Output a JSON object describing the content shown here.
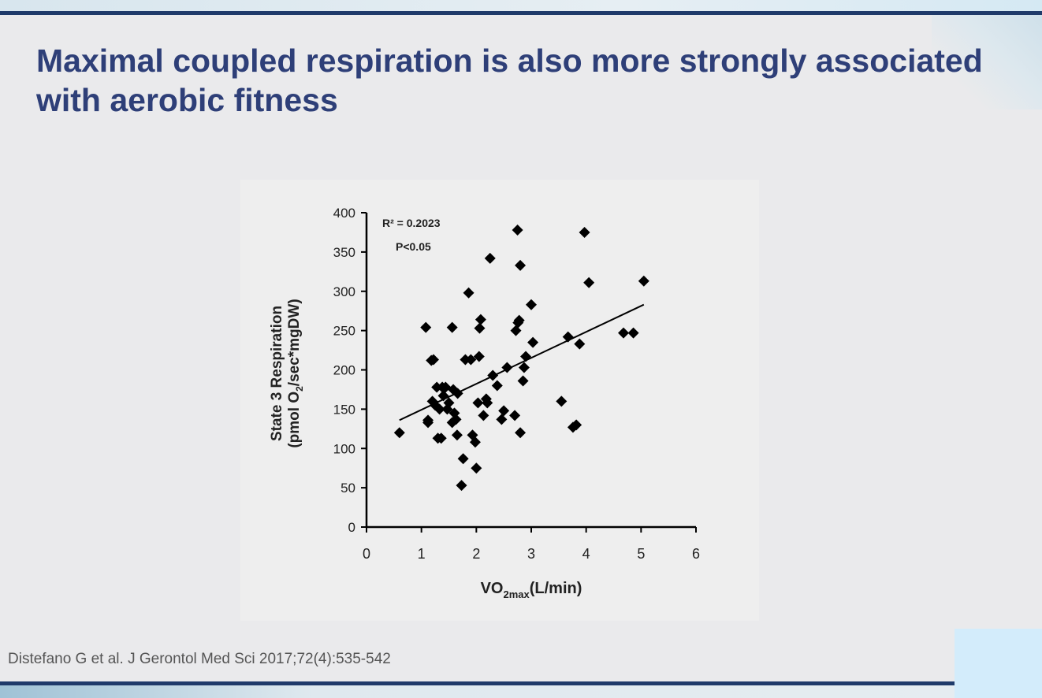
{
  "slide": {
    "title": "Maximal coupled respiration is also more strongly associated with aerobic fitness",
    "citation": "Distefano G et al. J Gerontol Med Sci 2017;72(4):535-542"
  },
  "colors": {
    "title": "#2e3f78",
    "rule": "#1f3a6a",
    "marker": "#000000",
    "citation": "#555555"
  },
  "chart_data": {
    "type": "scatter",
    "xlabel": "VO",
    "xlabel_sub": "2max",
    "xlabel_tail": "(L/min)",
    "ylabel_line1": "State 3 Respiration",
    "ylabel_line2_a": "(pmol O",
    "ylabel_line2_sub": "2",
    "ylabel_line2_b": "/sec*mgDW)",
    "xlim": [
      0,
      6
    ],
    "ylim": [
      0,
      400
    ],
    "x_ticks": [
      "0",
      "1",
      "2",
      "3",
      "4",
      "5",
      "6"
    ],
    "y_ticks": [
      "0",
      "50",
      "100",
      "150",
      "200",
      "250",
      "300",
      "350",
      "400"
    ],
    "marker": "diamond",
    "grid": false,
    "annotations": [
      "R² = 0.2023",
      "P<0.05"
    ],
    "trendline": {
      "x": [
        0.6,
        5.05
      ],
      "y": [
        136,
        283
      ]
    },
    "points": [
      [
        0.6,
        120
      ],
      [
        1.08,
        254
      ],
      [
        1.12,
        136
      ],
      [
        1.12,
        133
      ],
      [
        1.18,
        212
      ],
      [
        1.22,
        213
      ],
      [
        1.2,
        160
      ],
      [
        1.25,
        155
      ],
      [
        1.28,
        178
      ],
      [
        1.3,
        113
      ],
      [
        1.33,
        150
      ],
      [
        1.36,
        113
      ],
      [
        1.38,
        178
      ],
      [
        1.4,
        167
      ],
      [
        1.44,
        178
      ],
      [
        1.47,
        150
      ],
      [
        1.5,
        158
      ],
      [
        1.56,
        254
      ],
      [
        1.56,
        133
      ],
      [
        1.58,
        175
      ],
      [
        1.6,
        145
      ],
      [
        1.63,
        137
      ],
      [
        1.65,
        117
      ],
      [
        1.66,
        170
      ],
      [
        1.73,
        53
      ],
      [
        1.76,
        87
      ],
      [
        1.8,
        213
      ],
      [
        1.86,
        298
      ],
      [
        1.9,
        213
      ],
      [
        1.93,
        117
      ],
      [
        1.98,
        108
      ],
      [
        2.0,
        75
      ],
      [
        2.03,
        158
      ],
      [
        2.05,
        217
      ],
      [
        2.06,
        253
      ],
      [
        2.08,
        264
      ],
      [
        2.13,
        142
      ],
      [
        2.18,
        163
      ],
      [
        2.2,
        158
      ],
      [
        2.25,
        342
      ],
      [
        2.3,
        193
      ],
      [
        2.38,
        180
      ],
      [
        2.46,
        137
      ],
      [
        2.5,
        148
      ],
      [
        2.56,
        203
      ],
      [
        2.7,
        142
      ],
      [
        2.72,
        250
      ],
      [
        2.75,
        378
      ],
      [
        2.76,
        260
      ],
      [
        2.78,
        263
      ],
      [
        2.8,
        120
      ],
      [
        2.8,
        333
      ],
      [
        2.85,
        186
      ],
      [
        2.87,
        203
      ],
      [
        2.9,
        217
      ],
      [
        3.0,
        283
      ],
      [
        3.03,
        235
      ],
      [
        3.55,
        160
      ],
      [
        3.67,
        242
      ],
      [
        3.76,
        127
      ],
      [
        3.82,
        130
      ],
      [
        3.88,
        233
      ],
      [
        3.97,
        375
      ],
      [
        4.05,
        311
      ],
      [
        4.68,
        247
      ],
      [
        4.86,
        247
      ],
      [
        5.05,
        313
      ]
    ]
  }
}
